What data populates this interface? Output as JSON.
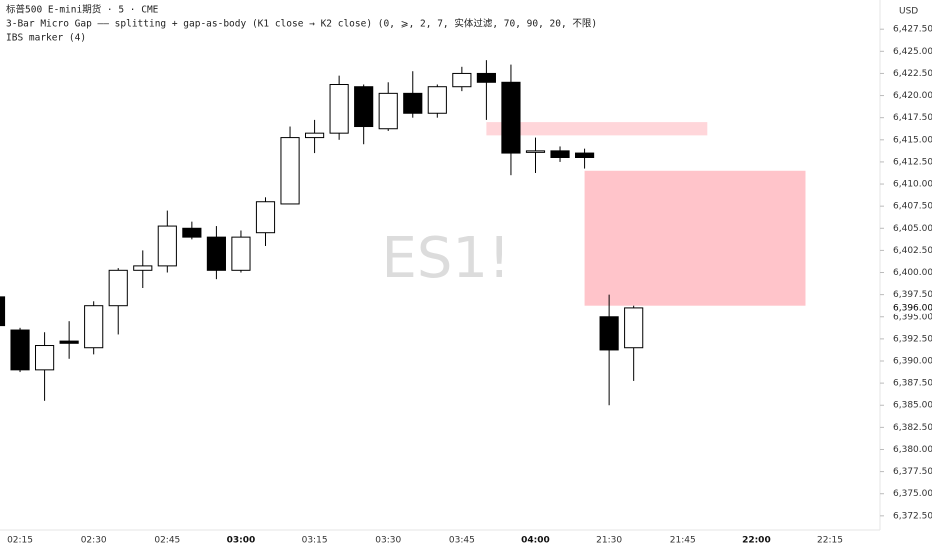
{
  "chart_data": {
    "type": "candlestick",
    "title": "标普500 E-mini期货 · 5 · CME",
    "indicators": [
      "3-Bar Micro Gap —— splitting + gap-as-body (K1 close → K2 close) (0, ⩾, 2, 7, 实体过滤, 70, 90, 20, 不限)",
      "IBS marker (4)"
    ],
    "watermark": "ES1!",
    "currency": "USD",
    "categories": [
      null,
      "02:15",
      null,
      null,
      "02:30",
      null,
      null,
      "02:45",
      null,
      null,
      "03:00",
      null,
      null,
      "03:15",
      null,
      null,
      "03:30",
      null,
      null,
      "03:45",
      null,
      null,
      "04:00",
      null,
      null,
      "21:30",
      null,
      null,
      "21:45",
      null,
      null,
      "22:00",
      null,
      null,
      "22:15"
    ],
    "open": [
      6397.25,
      6393.5,
      6389,
      6392.25,
      6391.5,
      6396.25,
      6400.25,
      6400.75,
      6405,
      6404,
      6400.25,
      6404.5,
      6407.75,
      6415.25,
      6415.75,
      6421,
      6416.25,
      6420.25,
      6418,
      6421,
      6422.5,
      6421.5,
      6413.75,
      6413.75,
      6413.5,
      6395,
      6391.5,
      null,
      null,
      null,
      null,
      null,
      null,
      null,
      null
    ],
    "high": [
      6397.5,
      6393.75,
      6393.25,
      6394.5,
      6396.75,
      6400.5,
      6402.5,
      6407,
      6405.75,
      6405.25,
      6404.75,
      6408.5,
      6416.5,
      6417.25,
      6422.25,
      6421.25,
      6421.5,
      6422.75,
      6421.25,
      6423.25,
      6424,
      6423.5,
      6415.25,
      6414.25,
      6414,
      6397.5,
      6396.25,
      null,
      null,
      null,
      null,
      null,
      null,
      null,
      null
    ],
    "low": [
      6394,
      6388.75,
      6385.5,
      6390.25,
      6390.75,
      6393,
      6398.25,
      6400,
      6403.75,
      6399.25,
      6400,
      6403,
      6407.75,
      6413.5,
      6415,
      6414.5,
      6416,
      6417.5,
      6417.5,
      6420.5,
      6417.25,
      6411,
      6411.25,
      6412.5,
      6411.75,
      6385,
      6387.75,
      null,
      null,
      null,
      null,
      null,
      null,
      null,
      null
    ],
    "close": [
      6394,
      6389,
      6391.75,
      6392,
      6396.25,
      6400.25,
      6400.75,
      6405.25,
      6404,
      6400.25,
      6404,
      6408,
      6415.25,
      6415.75,
      6421.25,
      6416.5,
      6420.25,
      6418,
      6421,
      6422.5,
      6421.5,
      6413.5,
      6413.75,
      6413,
      6413,
      6391.25,
      6396,
      null,
      null,
      null,
      null,
      null,
      null,
      null,
      null
    ],
    "up_color": "#ffffff",
    "down_color": "#000000",
    "zones": [
      {
        "start": 20,
        "end": 29,
        "low": 6415.5,
        "high": 6417.0,
        "color": "#ffd6da"
      },
      {
        "start": 24,
        "end": 33,
        "low": 6396.25,
        "high": 6411.5,
        "color": "#ffc4ca"
      }
    ],
    "last_price": {
      "value": 6396,
      "label": "6,396.00"
    },
    "ylim": [
      6370.9,
      6430.8
    ],
    "yticks": [
      {
        "value": 6372.5,
        "label": "6,372.50"
      },
      {
        "value": 6375,
        "label": "6,375.00"
      },
      {
        "value": 6377.5,
        "label": "6,377.50"
      },
      {
        "value": 6380,
        "label": "6,380.00"
      },
      {
        "value": 6382.5,
        "label": "6,382.50"
      },
      {
        "value": 6385,
        "label": "6,385.00"
      },
      {
        "value": 6387.5,
        "label": "6,387.50"
      },
      {
        "value": 6390,
        "label": "6,390.00"
      },
      {
        "value": 6392.5,
        "label": "6,392.50"
      },
      {
        "value": 6395,
        "label": "6,395.00"
      },
      {
        "value": 6397.5,
        "label": "6,397.50"
      },
      {
        "value": 6400,
        "label": "6,400.00"
      },
      {
        "value": 6402.5,
        "label": "6,402.50"
      },
      {
        "value": 6405,
        "label": "6,405.00"
      },
      {
        "value": 6407.5,
        "label": "6,407.50"
      },
      {
        "value": 6410,
        "label": "6,410.00"
      },
      {
        "value": 6412.5,
        "label": "6,412.50"
      },
      {
        "value": 6415,
        "label": "6,415.00"
      },
      {
        "value": 6417.5,
        "label": "6,417.50"
      },
      {
        "value": 6420,
        "label": "6,420.00"
      },
      {
        "value": 6422.5,
        "label": "6,422.50"
      },
      {
        "value": 6425,
        "label": "6,425.00"
      },
      {
        "value": 6427.5,
        "label": "6,427.50"
      }
    ],
    "grid": false
  }
}
